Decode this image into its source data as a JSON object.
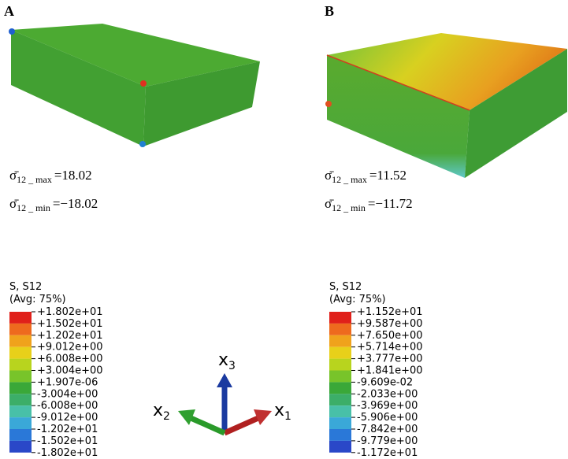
{
  "panels": [
    {
      "label": "A",
      "max": {
        "symbol": "σ̄",
        "subscript": "12 _ max",
        "value": "=18.02"
      },
      "min": {
        "symbol": "σ̄",
        "subscript": "12 _ min",
        "value": "=−18.02"
      },
      "legend": {
        "title": "S, S12",
        "subtitle": "(Avg: 75%)",
        "labels": [
          "+1.802e+01",
          "+1.502e+01",
          "+1.202e+01",
          "+9.012e+00",
          "+6.008e+00",
          "+3.004e+00",
          "+1.907e-06",
          "-3.004e+00",
          "-6.008e+00",
          "-9.012e+00",
          "-1.202e+01",
          "-1.502e+01",
          "-1.802e+01"
        ]
      }
    },
    {
      "label": "B",
      "max": {
        "symbol": "σ̄",
        "subscript": "12 _ max",
        "value": "=11.52"
      },
      "min": {
        "symbol": "σ̄",
        "subscript": "12 _ min",
        "value": "=−11.72"
      },
      "legend": {
        "title": "S, S12",
        "subtitle": "(Avg: 75%)",
        "labels": [
          "+1.152e+01",
          "+9.587e+00",
          "+7.650e+00",
          "+5.714e+00",
          "+3.777e+00",
          "+1.841e+00",
          "-9.609e-02",
          "-2.033e+00",
          "-3.969e+00",
          "-5.906e+00",
          "-7.842e+00",
          "-9.779e+00",
          "-1.172e+01"
        ]
      }
    }
  ],
  "triad": [
    {
      "base": "x",
      "sub": "1"
    },
    {
      "base": "x",
      "sub": "2"
    },
    {
      "base": "x",
      "sub": "3"
    }
  ]
}
